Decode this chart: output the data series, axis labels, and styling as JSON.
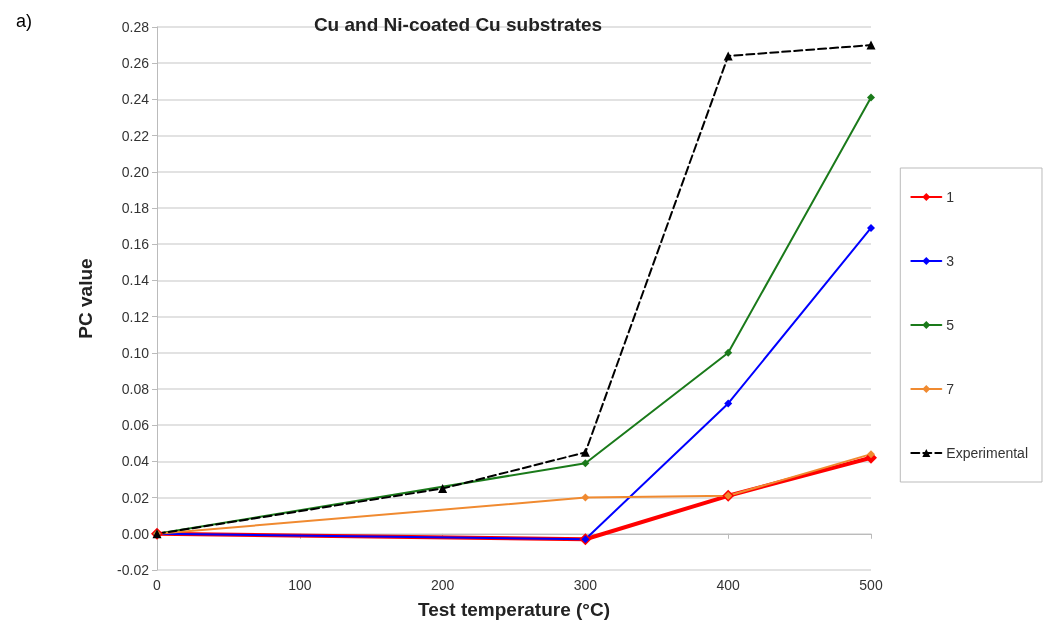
{
  "chart_data": {
    "type": "line",
    "title": "Cu and Ni-coated Cu substrates",
    "xlabel": "Test temperature (°C)",
    "ylabel": "PC value",
    "annotations": [
      "a)"
    ],
    "xlim": [
      0,
      500
    ],
    "xticks": [
      0,
      100,
      200,
      300,
      400,
      500
    ],
    "ylim": [
      -0.02,
      0.28
    ],
    "yticks": [
      {
        "value": -0.02,
        "label": "-0.02"
      },
      {
        "value": 0,
        "label": "0.00"
      },
      {
        "value": 0.02,
        "label": "0.02"
      },
      {
        "value": 0.04,
        "label": "0.04"
      },
      {
        "value": 0.06,
        "label": "0.06"
      },
      {
        "value": 0.08,
        "label": "0.08"
      },
      {
        "value": 0.1,
        "label": "0.10"
      },
      {
        "value": 0.12,
        "label": "0.12"
      },
      {
        "value": 0.14,
        "label": "0.14"
      },
      {
        "value": 0.16,
        "label": "0.16"
      },
      {
        "value": 0.18,
        "label": "0.18"
      },
      {
        "value": 0.2,
        "label": "0.20"
      },
      {
        "value": 0.22,
        "label": "0.22"
      },
      {
        "value": 0.24,
        "label": "0.24"
      },
      {
        "value": 0.26,
        "label": "0.26"
      },
      {
        "value": 0.28,
        "label": "0.28"
      }
    ],
    "grid": "y",
    "legend": "right",
    "series": [
      {
        "name": "1",
        "color": "#ff0000",
        "marker": "diamond",
        "x": [
          0,
          300,
          400,
          500
        ],
        "values": [
          0,
          -0.003,
          0.021,
          0.042
        ]
      },
      {
        "name": "3",
        "color": "#0000ff",
        "marker": "diamond",
        "x": [
          0,
          300,
          400,
          500
        ],
        "values": [
          0,
          -0.003,
          0.072,
          0.169
        ]
      },
      {
        "name": "5",
        "color": "#1a7a1a",
        "marker": "diamond",
        "x": [
          0,
          300,
          400,
          500
        ],
        "values": [
          0,
          0.039,
          0.1,
          0.241
        ]
      },
      {
        "name": "7",
        "color": "#f08a30",
        "marker": "diamond",
        "x": [
          0,
          300,
          400,
          500
        ],
        "values": [
          0,
          0.02,
          0.021,
          0.044
        ]
      },
      {
        "name": "Experimental",
        "color": "#000000",
        "marker": "triangle",
        "line_style": "dashed",
        "x": [
          0,
          200,
          300,
          400,
          500
        ],
        "values": [
          0,
          0.025,
          0.045,
          0.264,
          0.27
        ]
      }
    ]
  }
}
